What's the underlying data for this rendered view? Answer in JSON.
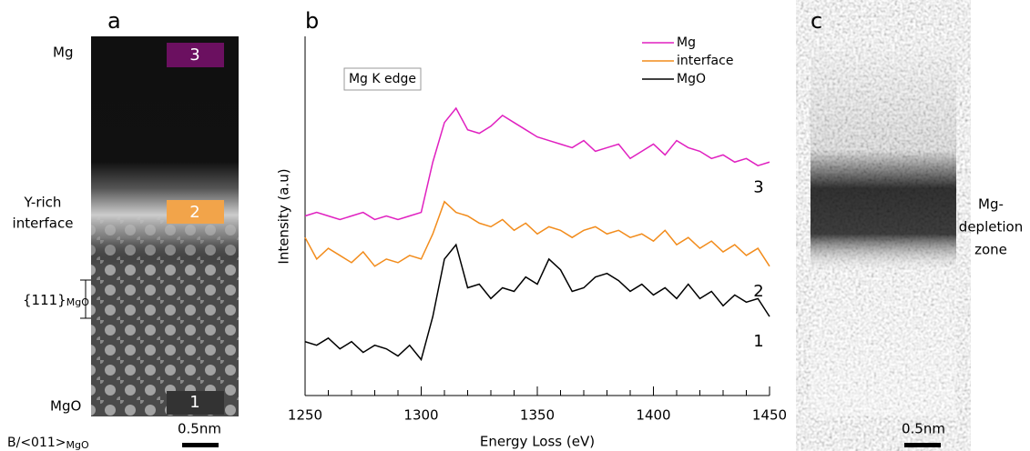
{
  "panels": {
    "a": {
      "label": "a",
      "top": "Mg",
      "mid": [
        "Y-rich",
        "interface"
      ],
      "plane": {
        "main": "{111}",
        "sub": "MgO"
      },
      "bottom": "MgO",
      "zone": {
        "main": "B/<011>",
        "sub": "MgO"
      },
      "scale": "0.5nm",
      "boxes": [
        "3",
        "2",
        "1"
      ]
    },
    "c": {
      "label": "c",
      "note": [
        "Mg-",
        "depletion",
        "zone"
      ],
      "scale": "0.5nm"
    }
  },
  "chart_data": {
    "type": "line",
    "label": "b",
    "xlabel": "Energy Loss (eV)",
    "ylabel": "Intensity (a.u)",
    "annotation": "Mg K edge",
    "x": [
      1250,
      1255,
      1260,
      1265,
      1270,
      1275,
      1280,
      1285,
      1290,
      1295,
      1300,
      1305,
      1310,
      1315,
      1320,
      1325,
      1330,
      1335,
      1340,
      1345,
      1350,
      1355,
      1360,
      1365,
      1370,
      1375,
      1380,
      1385,
      1390,
      1395,
      1400,
      1405,
      1410,
      1415,
      1420,
      1425,
      1430,
      1435,
      1440,
      1445,
      1450
    ],
    "series": [
      {
        "name": "Mg",
        "color": "#e020c0",
        "curve_label": "3",
        "values": [
          50,
          51,
          50,
          49,
          50,
          51,
          49,
          50,
          49,
          50,
          51,
          65,
          76,
          80,
          74,
          73,
          75,
          78,
          76,
          74,
          72,
          71,
          70,
          69,
          71,
          68,
          69,
          70,
          66,
          68,
          70,
          67,
          71,
          69,
          68,
          66,
          67,
          65,
          66,
          64,
          65
        ]
      },
      {
        "name": "interface",
        "color": "#f28c1c",
        "curve_label": "2",
        "values": [
          44,
          38,
          41,
          39,
          37,
          40,
          36,
          38,
          37,
          39,
          38,
          45,
          54,
          51,
          50,
          48,
          47,
          49,
          46,
          48,
          45,
          47,
          46,
          44,
          46,
          47,
          45,
          46,
          44,
          45,
          43,
          46,
          42,
          44,
          41,
          43,
          40,
          42,
          39,
          41,
          36
        ]
      },
      {
        "name": "MgO",
        "color": "#000000",
        "curve_label": "1",
        "values": [
          15,
          14,
          16,
          13,
          15,
          12,
          14,
          13,
          11,
          14,
          10,
          22,
          38,
          42,
          30,
          31,
          27,
          30,
          29,
          33,
          31,
          38,
          35,
          29,
          30,
          33,
          34,
          32,
          29,
          31,
          28,
          30,
          27,
          31,
          27,
          29,
          25,
          28,
          26,
          27,
          22
        ]
      }
    ],
    "xlim": [
      1250,
      1450
    ],
    "xticks": [
      1250,
      1300,
      1350,
      1400,
      1450
    ],
    "xminorticks": [
      1260,
      1270,
      1280,
      1290,
      1310,
      1320,
      1330,
      1340,
      1360,
      1370,
      1380,
      1390,
      1410,
      1420,
      1430,
      1440
    ],
    "ylim": [
      0,
      100
    ]
  }
}
